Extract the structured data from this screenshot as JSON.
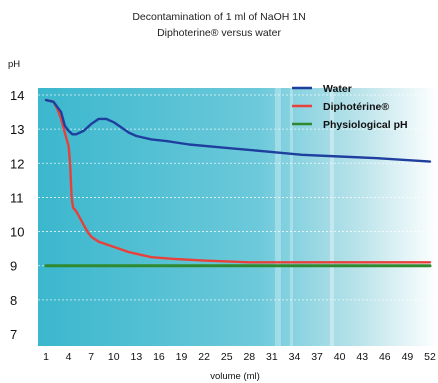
{
  "chart_data": {
    "type": "line",
    "title": "Decontamination of 1 ml of NaOH 1N",
    "subtitle": "Diphoterine® versus water",
    "ylabel": "pH",
    "xlabel": "volume (ml)",
    "ylim": [
      7,
      14
    ],
    "xlim": [
      1,
      52
    ],
    "yticks": [
      "7",
      "8",
      "9",
      "10",
      "11",
      "12",
      "13",
      "14"
    ],
    "xticks": [
      "1",
      "4",
      "7",
      "10",
      "13",
      "16",
      "19",
      "22",
      "25",
      "28",
      "31",
      "34",
      "37",
      "40",
      "43",
      "46",
      "49",
      "52"
    ],
    "grid": true,
    "legend_position": "top-right",
    "series": [
      {
        "name": "Water",
        "color": "#1f3f9e",
        "x": [
          1,
          2,
          3,
          3.5,
          4,
          4.5,
          5,
          6,
          7,
          8,
          9,
          10,
          11,
          12,
          13,
          15,
          17,
          20,
          25,
          30,
          35,
          40,
          45,
          52
        ],
        "y": [
          13.85,
          13.8,
          13.5,
          13.1,
          12.95,
          12.85,
          12.85,
          12.95,
          13.15,
          13.3,
          13.3,
          13.2,
          13.05,
          12.9,
          12.8,
          12.7,
          12.65,
          12.55,
          12.45,
          12.35,
          12.25,
          12.2,
          12.15,
          12.05
        ]
      },
      {
        "name": "Diphotérine®",
        "color": "#e8403a",
        "x": [
          1,
          2,
          2.5,
          3,
          3.5,
          4,
          4.2,
          4.4,
          4.6,
          5,
          5.5,
          6,
          6.5,
          7,
          8,
          10,
          12,
          15,
          18,
          22,
          28,
          35,
          45,
          52
        ],
        "y": [
          13.85,
          13.8,
          13.6,
          13.3,
          12.9,
          12.5,
          12.0,
          11.0,
          10.7,
          10.6,
          10.4,
          10.2,
          10.0,
          9.85,
          9.7,
          9.55,
          9.4,
          9.25,
          9.2,
          9.15,
          9.1,
          9.1,
          9.1,
          9.1
        ]
      },
      {
        "name": "Physiological pH",
        "color": "#2f8a2f",
        "x": [
          1,
          52
        ],
        "y": [
          9,
          9
        ]
      }
    ]
  }
}
